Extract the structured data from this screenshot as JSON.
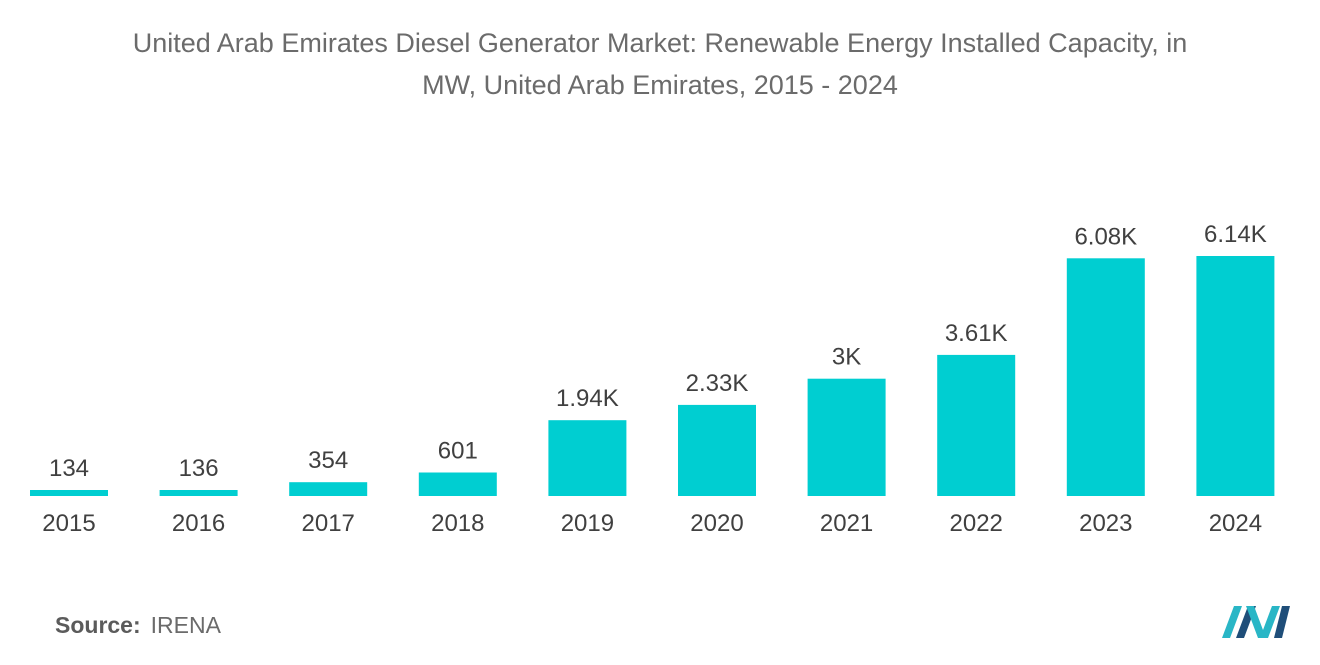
{
  "title_line1": "United Arab Emirates Diesel Generator Market: Renewable Energy Installed Capacity, in",
  "title_line2": "MW, United Arab Emirates, 2015 - 2024",
  "source": {
    "label": "Source:",
    "value": "IRENA"
  },
  "logo": {
    "icon": "mordor-intelligence-logo-icon"
  },
  "colors": {
    "bar": "#00CED1",
    "text": "#404040",
    "title": "#6b6b6b",
    "logo_teal": "#29B6C6",
    "logo_dark": "#1F4E79"
  },
  "chart_data": {
    "type": "bar",
    "title": "United Arab Emirates Diesel Generator Market: Renewable Energy Installed Capacity, in MW, United Arab Emirates, 2015 - 2024",
    "xlabel": "",
    "ylabel": "",
    "categories": [
      "2015",
      "2016",
      "2017",
      "2018",
      "2019",
      "2020",
      "2021",
      "2022",
      "2023",
      "2024"
    ],
    "values": [
      134,
      136,
      354,
      601,
      1940,
      2330,
      3000,
      3610,
      6080,
      6140
    ],
    "labels": [
      "134",
      "136",
      "354",
      "601",
      "1.94K",
      "2.33K",
      "3K",
      "3.61K",
      "6.08K",
      "6.14K"
    ],
    "ylim": [
      0,
      6140
    ],
    "grid": false,
    "legend": "none"
  }
}
